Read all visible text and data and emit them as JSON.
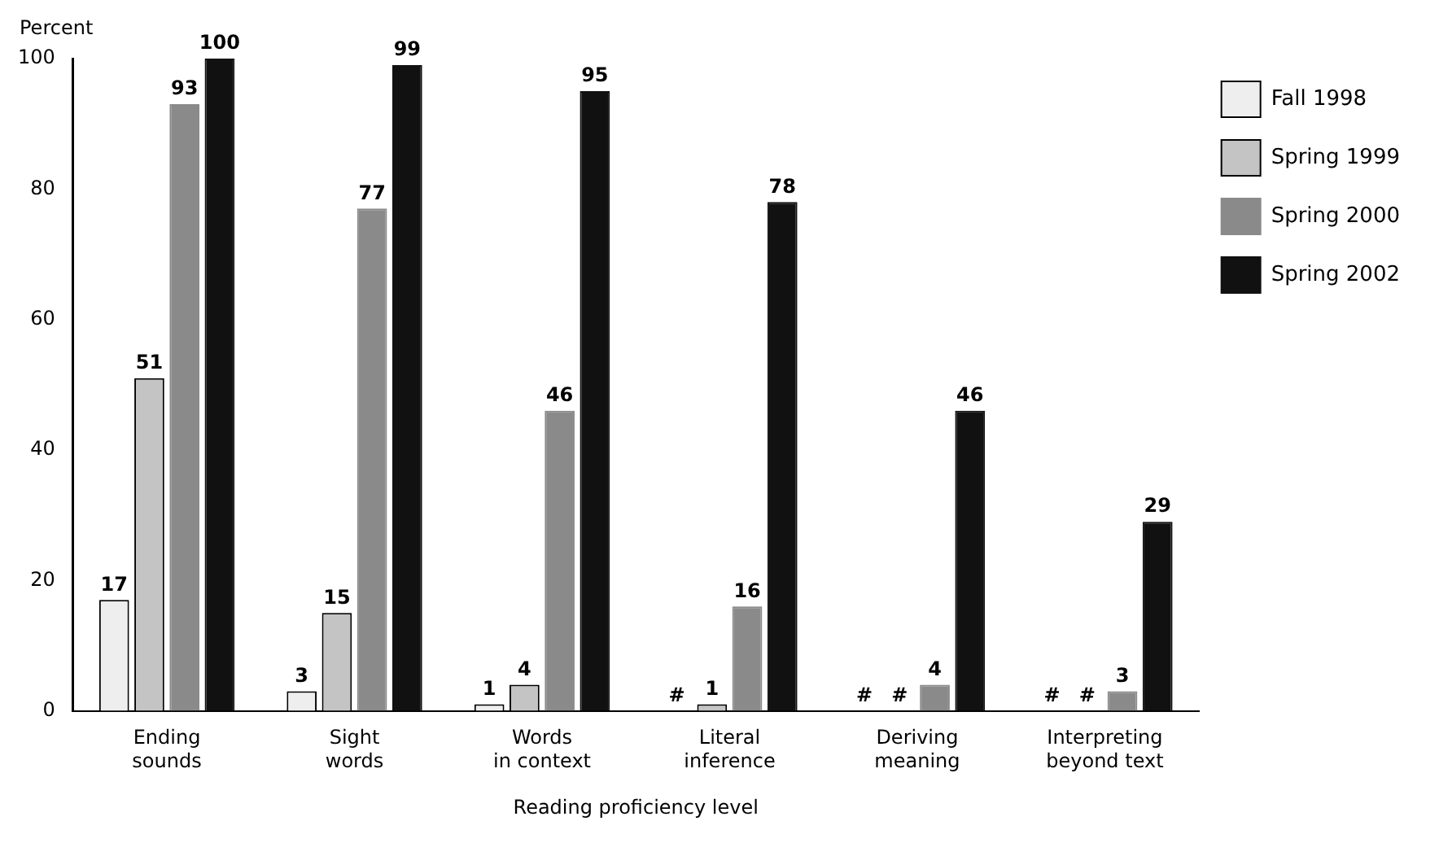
{
  "chart_data": {
    "type": "bar",
    "xlabel": "Reading proficiency level",
    "ylabel": "Percent",
    "categories": [
      "Ending sounds",
      "Sight words",
      "Words in context",
      "Literal inference",
      "Deriving meaning",
      "Interpreting beyond text"
    ],
    "series": [
      {
        "name": "Fall 1998",
        "color": "#eeeeee",
        "values": [
          17,
          3,
          1,
          null,
          null,
          null
        ],
        "value_labels": [
          "17",
          "3",
          "1",
          "#",
          "#",
          "#"
        ]
      },
      {
        "name": "Spring 1999",
        "color": "#c4c4c4",
        "values": [
          51,
          15,
          4,
          1,
          null,
          null
        ],
        "value_labels": [
          "51",
          "15",
          "4",
          "1",
          "#",
          "#"
        ]
      },
      {
        "name": "Spring 2000",
        "color": "#8a8a8a",
        "values": [
          93,
          77,
          46,
          16,
          4,
          3
        ],
        "value_labels": [
          "93",
          "77",
          "46",
          "16",
          "4",
          "3"
        ]
      },
      {
        "name": "Spring 2002",
        "color": "#111111",
        "values": [
          100,
          99,
          95,
          78,
          46,
          29
        ],
        "value_labels": [
          "100",
          "99",
          "95",
          "78",
          "46",
          "29"
        ]
      }
    ],
    "ylim": [
      0,
      100
    ],
    "yticks": [
      0,
      20,
      40,
      60,
      80,
      100
    ],
    "grid": false,
    "legend": "top right"
  }
}
